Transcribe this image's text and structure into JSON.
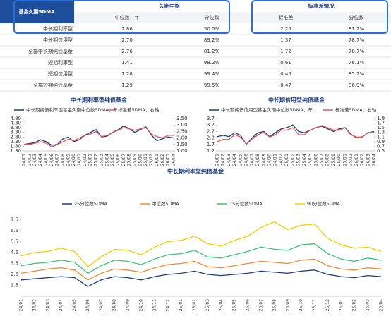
{
  "table": {
    "corner": "基金久期5DMA",
    "groups": [
      "久期中枢",
      "标准差情况"
    ],
    "subheaders": [
      "中位数，年",
      "分位数",
      "标准差",
      "分位数"
    ],
    "rows": [
      [
        "中长期利率型",
        "2.86",
        "50.0%",
        "2.25",
        "81.2%"
      ],
      [
        "中长期信用型",
        "2.70",
        "89.2%",
        "1.37",
        "78.7%"
      ],
      [
        "全部中长期纯债基金",
        "2.76",
        "81.2%",
        "1.72",
        "78.7%"
      ],
      [
        "短期利率型",
        "1.41",
        "98.2%",
        "0.61",
        "76.1%"
      ],
      [
        "短期信用型",
        "1.28",
        "99.4%",
        "0.45",
        "85.2%"
      ],
      [
        "全部短期纯债基金",
        "1.29",
        "99.5%",
        "0.47",
        "86.9%"
      ]
    ]
  },
  "chart_data": [
    {
      "type": "line",
      "title": "中长期利率型纯债基金",
      "categories": [
        "24/01",
        "24/02",
        "24/03",
        "24/04",
        "24/05",
        "24/06",
        "24/07",
        "24/08",
        "24/09",
        "24/10",
        "24/11",
        "24/12",
        "25/01",
        "25/02",
        "25/03",
        "25/04",
        "25/05",
        "25/06",
        "25/07",
        "25/08",
        "25/09",
        "25/10",
        "25/11",
        "25/12",
        "26/01",
        "26/02",
        "26/03",
        "26/04"
      ],
      "series": [
        {
          "name": "中长期纯债利率型基金久期中位数5DMA，年",
          "color": "#1f3a7a",
          "values": [
            2.0,
            2.1,
            2.2,
            2.5,
            2.3,
            1.9,
            2.0,
            2.6,
            2.8,
            2.3,
            2.5,
            3.0,
            3.3,
            3.6,
            2.8,
            2.9,
            3.3,
            3.6,
            4.0,
            3.7,
            3.3,
            3.6,
            3.9,
            3.0,
            2.4,
            2.6,
            2.8,
            2.7
          ]
        },
        {
          "name": "标准差5DMA，右轴",
          "color": "#e05a5a",
          "axis": "y2",
          "values": [
            1.5,
            1.5,
            1.6,
            1.7,
            1.6,
            1.3,
            1.5,
            1.7,
            1.9,
            1.8,
            2.0,
            2.2,
            2.3,
            2.5,
            2.1,
            2.2,
            2.4,
            2.6,
            2.8,
            2.7,
            2.6,
            2.7,
            2.8,
            2.3,
            2.1,
            2.0,
            2.2,
            2.2
          ]
        }
      ],
      "ylim": [
        1.3,
        4.8
      ],
      "yticks": [
        {
          "value": 1.3,
          "label": "1.30"
        },
        {
          "value": 1.8,
          "label": "1.80"
        },
        {
          "value": 2.3,
          "label": "2.30"
        },
        {
          "value": 2.8,
          "label": "2.80"
        },
        {
          "value": 3.3,
          "label": "3.30"
        },
        {
          "value": 3.8,
          "label": "3.80"
        },
        {
          "value": 4.3,
          "label": "4.30"
        },
        {
          "value": 4.8,
          "label": "4.80"
        }
      ],
      "y2lim": [
        1.0,
        3.5
      ],
      "y2ticks": [
        {
          "value": 1.0,
          "label": "1.00"
        },
        {
          "value": 1.5,
          "label": "1.50"
        },
        {
          "value": 2.0,
          "label": "2.00"
        },
        {
          "value": 2.5,
          "label": "2.50"
        },
        {
          "value": 3.0,
          "label": "3.00"
        },
        {
          "value": 3.5,
          "label": "3.50"
        }
      ]
    },
    {
      "type": "line",
      "title": "中长期信用型纯债基金",
      "categories": [
        "24/01",
        "24/02",
        "24/03",
        "24/04",
        "24/05",
        "24/06",
        "24/07",
        "24/08",
        "24/09",
        "24/10",
        "24/11",
        "24/12",
        "25/01",
        "25/02",
        "25/03",
        "25/04",
        "25/05",
        "25/06",
        "25/07",
        "25/08",
        "25/09",
        "25/10",
        "25/11",
        "25/12",
        "26/01",
        "26/02",
        "26/03",
        "26/04"
      ],
      "series": [
        {
          "name": "中长期纯债信用型基金久期中位数5DMA，年",
          "color": "#1f3a7a",
          "values": [
            2.3,
            2.4,
            2.3,
            2.6,
            2.4,
            1.7,
            2.2,
            2.6,
            2.7,
            2.3,
            2.6,
            2.9,
            3.0,
            3.2,
            2.7,
            2.6,
            2.8,
            3.0,
            3.1,
            2.9,
            2.7,
            2.9,
            3.0,
            2.5,
            2.2,
            2.3,
            2.6,
            2.7
          ]
        },
        {
          "name": "标准差5DMA，右轴",
          "color": "#e05a5a",
          "axis": "y2",
          "values": [
            0.9,
            1.0,
            1.0,
            1.2,
            1.1,
            0.8,
            1.0,
            1.2,
            1.3,
            1.1,
            1.2,
            1.4,
            1.4,
            1.5,
            1.2,
            1.2,
            1.4,
            1.5,
            1.6,
            1.5,
            1.4,
            1.4,
            1.5,
            1.2,
            1.1,
            1.1,
            1.3,
            1.3
          ]
        }
      ],
      "ylim": [
        1.2,
        3.7
      ],
      "yticks": [
        1.2,
        1.7,
        2.2,
        2.7,
        3.2,
        3.7
      ],
      "y2lim": [
        0.5,
        1.9
      ],
      "y2ticks": [
        0.5,
        0.7,
        0.9,
        1.1,
        1.3,
        1.5,
        1.7,
        1.9
      ]
    },
    {
      "type": "line",
      "title": "中长期利率型纯债基金",
      "categories": [
        "24/01",
        "24/02",
        "24/03",
        "24/04",
        "24/05",
        "24/06",
        "24/07",
        "24/08",
        "24/09",
        "24/10",
        "24/11",
        "24/12",
        "25/01",
        "25/02",
        "25/03",
        "25/04",
        "25/05",
        "25/06",
        "25/07",
        "25/08",
        "25/09",
        "25/10",
        "25/11",
        "25/12",
        "26/01",
        "26/02",
        "26/03",
        "26/04"
      ],
      "series": [
        {
          "name": "25分位数5DMA",
          "color": "#1f3a7a",
          "values": [
            2.0,
            2.1,
            2.2,
            2.3,
            2.2,
            1.4,
            2.0,
            2.3,
            2.2,
            2.0,
            2.3,
            2.5,
            2.6,
            2.8,
            2.5,
            2.4,
            2.5,
            2.6,
            2.8,
            2.7,
            2.6,
            2.8,
            2.9,
            2.5,
            2.3,
            2.2,
            2.4,
            2.3
          ]
        },
        {
          "name": "中位数5DMA",
          "color": "#f08a3c",
          "values": [
            2.6,
            2.8,
            3.0,
            3.1,
            2.9,
            2.0,
            2.6,
            3.0,
            2.9,
            2.7,
            3.1,
            3.4,
            3.5,
            3.7,
            3.2,
            3.1,
            3.3,
            3.5,
            3.7,
            3.6,
            3.5,
            3.8,
            3.9,
            3.3,
            3.0,
            2.9,
            3.1,
            3.0
          ]
        },
        {
          "name": "75分位数5DMA",
          "color": "#3cc47a",
          "values": [
            3.3,
            3.5,
            3.6,
            3.8,
            3.6,
            2.6,
            3.3,
            3.8,
            3.7,
            3.4,
            3.9,
            4.3,
            4.4,
            4.7,
            4.1,
            4.0,
            4.3,
            4.6,
            5.0,
            4.8,
            4.7,
            5.2,
            5.3,
            4.4,
            3.9,
            3.7,
            4.0,
            3.8
          ]
        },
        {
          "name": "90分位数5DMA",
          "color": "#f5d000",
          "values": [
            4.2,
            4.5,
            4.6,
            4.9,
            4.6,
            3.2,
            4.1,
            4.8,
            4.7,
            4.3,
            5.0,
            5.5,
            5.6,
            6.0,
            5.3,
            5.1,
            5.6,
            6.0,
            6.8,
            7.3,
            6.6,
            7.0,
            7.1,
            5.8,
            5.2,
            4.9,
            5.0,
            4.6
          ]
        }
      ],
      "ylim": [
        0.5,
        8.5
      ],
      "yticks": [
        1.5,
        2.5,
        3.5,
        4.5,
        5.5,
        6.5,
        7.5
      ]
    }
  ]
}
